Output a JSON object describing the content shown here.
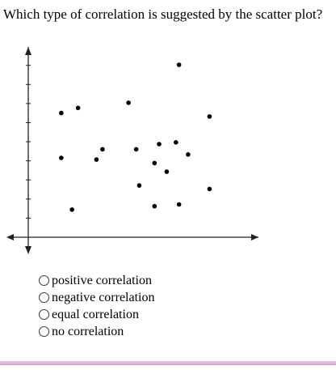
{
  "question": {
    "text": "Which type of correlation is suggested by the scatter plot?"
  },
  "chart_data": {
    "type": "scatter",
    "title": "",
    "xlabel": "",
    "ylabel": "",
    "xlim": [
      0,
      14
    ],
    "ylim": [
      0,
      10
    ],
    "yticks": [
      1,
      2,
      3,
      4,
      5,
      6,
      7,
      8,
      9
    ],
    "grid": false,
    "points": [
      {
        "x": 1.1,
        "y": 7.2
      },
      {
        "x": 1.1,
        "y": 4.6
      },
      {
        "x": 1.8,
        "y": 1.6
      },
      {
        "x": 2.2,
        "y": 7.5
      },
      {
        "x": 3.4,
        "y": 4.5
      },
      {
        "x": 3.8,
        "y": 5.1
      },
      {
        "x": 5.5,
        "y": 7.8
      },
      {
        "x": 6.0,
        "y": 5.1
      },
      {
        "x": 6.2,
        "y": 3.0
      },
      {
        "x": 7.2,
        "y": 4.3
      },
      {
        "x": 7.2,
        "y": 1.8
      },
      {
        "x": 7.5,
        "y": 5.4
      },
      {
        "x": 8.0,
        "y": 3.8
      },
      {
        "x": 8.6,
        "y": 5.5
      },
      {
        "x": 8.8,
        "y": 10.0
      },
      {
        "x": 8.8,
        "y": 1.9
      },
      {
        "x": 9.4,
        "y": 4.8
      },
      {
        "x": 10.8,
        "y": 7.0
      },
      {
        "x": 10.8,
        "y": 2.8
      }
    ]
  },
  "answer_options": [
    {
      "label": "positive correlation"
    },
    {
      "label": "negative correlation"
    },
    {
      "label": "equal correlation"
    },
    {
      "label": "no correlation"
    }
  ],
  "colors": {
    "text": "#000000",
    "radio_border": "#3a3a3a",
    "footer_bar": "#d9a3d6"
  }
}
